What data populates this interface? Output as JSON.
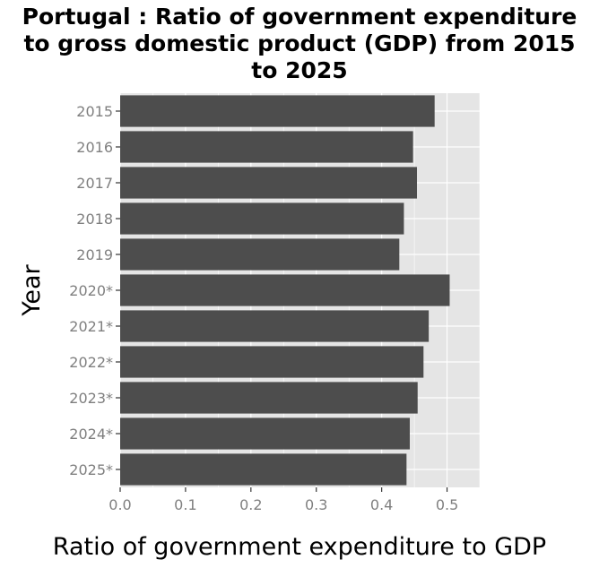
{
  "chart_data": {
    "type": "bar",
    "orientation": "horizontal",
    "title_lines": [
      "Portugal : Ratio of government expenditure",
      "to gross domestic product (GDP) from 2015",
      "to 2025"
    ],
    "xlabel": "Ratio of government expenditure to GDP",
    "ylabel": "Year",
    "categories": [
      "2015",
      "2016",
      "2017",
      "2018",
      "2019",
      "2020*",
      "2021*",
      "2022*",
      "2023*",
      "2024*",
      "2025*"
    ],
    "values": [
      0.481,
      0.448,
      0.454,
      0.434,
      0.427,
      0.504,
      0.472,
      0.464,
      0.455,
      0.443,
      0.438
    ],
    "xlim": [
      0,
      0.55
    ],
    "xticks": [
      "0.0",
      "0.1",
      "0.2",
      "0.3",
      "0.4",
      "0.5"
    ],
    "grid": true,
    "bar_color": "#4d4d4d",
    "panel_color": "#e5e5e5",
    "grid_color": "#ffffff"
  }
}
